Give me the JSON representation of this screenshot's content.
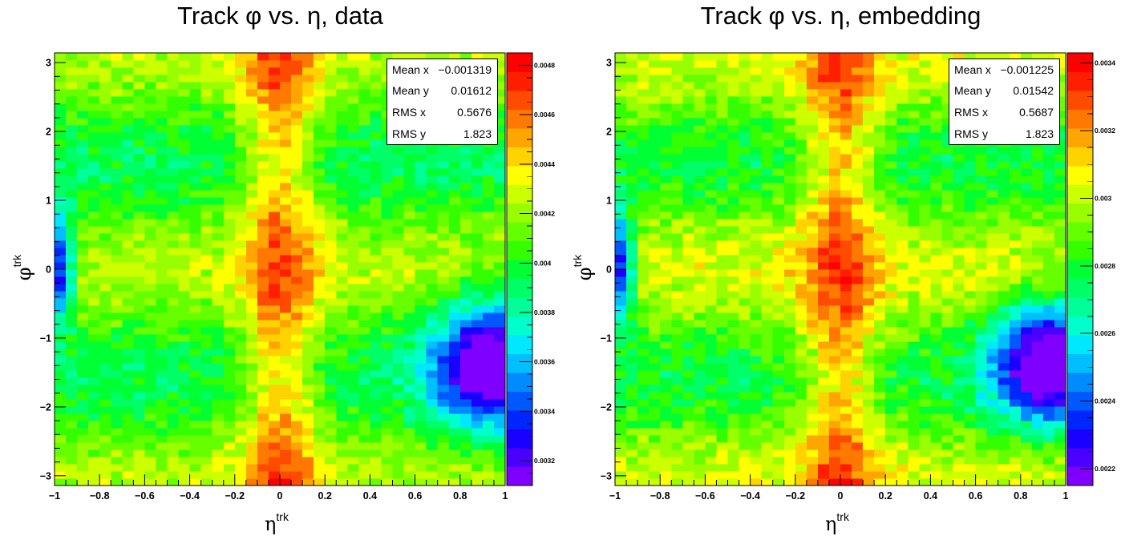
{
  "chart_data": [
    {
      "type": "heatmap",
      "title": "Track φ vs. η, data",
      "xlabel": "η",
      "xlabel_sup": "trk",
      "ylabel": "φ",
      "ylabel_sup": "trk",
      "xlim": [
        -1,
        1
      ],
      "ylim": [
        -3.1416,
        3.1416
      ],
      "x_ticks": [
        "−1",
        "−0.8",
        "−0.6",
        "−0.4",
        "−0.2",
        "0",
        "0.2",
        "0.4",
        "0.6",
        "0.8",
        "1"
      ],
      "y_ticks": [
        "−3",
        "−2",
        "−1",
        "0",
        "1",
        "2",
        "3"
      ],
      "zlim": [
        0.0031,
        0.00485
      ],
      "z_ticks": [
        "0.0032",
        "0.0034",
        "0.0036",
        "0.0038",
        "0.004",
        "0.0042",
        "0.0044",
        "0.0046",
        "0.0048"
      ],
      "z_tick_values": [
        0.0032,
        0.0034,
        0.0036,
        0.0038,
        0.004,
        0.0042,
        0.0044,
        0.0046,
        0.0048
      ],
      "bins": [
        40,
        60
      ],
      "pattern": {
        "base": 0.00408,
        "center_peak": 0.00046,
        "center_width": 0.12,
        "phi_modulation": 0.00016,
        "blue_spot_left": {
          "eta": -0.98,
          "phi": 0.05,
          "depth": 0.0009
        },
        "cold_region_right": {
          "eta": 0.93,
          "phi": -1.35,
          "depth": 0.00105
        },
        "noise": 0.0001
      },
      "stats": [
        {
          "label": "Mean x",
          "value": "−0.001319"
        },
        {
          "label": "Mean y",
          "value": "0.01612"
        },
        {
          "label": "RMS x",
          "value": "0.5676"
        },
        {
          "label": "RMS y",
          "value": "1.823"
        }
      ]
    },
    {
      "type": "heatmap",
      "title": "Track φ vs. η, embedding",
      "xlabel": "η",
      "xlabel_sup": "trk",
      "ylabel": "φ",
      "ylabel_sup": "trk",
      "xlim": [
        -1,
        1
      ],
      "ylim": [
        -3.1416,
        3.1416
      ],
      "x_ticks": [
        "−1",
        "−0.8",
        "−0.6",
        "−0.4",
        "−0.2",
        "0",
        "0.2",
        "0.4",
        "0.6",
        "0.8",
        "1"
      ],
      "y_ticks": [
        "−3",
        "−2",
        "−1",
        "0",
        "1",
        "2",
        "3"
      ],
      "zlim": [
        0.00215,
        0.00343
      ],
      "z_ticks": [
        "0.0022",
        "0.0024",
        "0.0026",
        "0.0028",
        "0.003",
        "0.0032",
        "0.0034"
      ],
      "z_tick_values": [
        0.0022,
        0.0024,
        0.0026,
        0.0028,
        0.003,
        0.0032,
        0.0034
      ],
      "bins": [
        40,
        60
      ],
      "pattern": {
        "base": 0.0029,
        "center_peak": 0.00032,
        "center_width": 0.12,
        "phi_modulation": 0.00012,
        "blue_spot_left": {
          "eta": -0.98,
          "phi": 0.05,
          "depth": 0.0007
        },
        "cold_region_right": {
          "eta": 0.93,
          "phi": -1.35,
          "depth": 0.0008
        },
        "noise": 8e-05
      },
      "stats": [
        {
          "label": "Mean x",
          "value": "−0.001225"
        },
        {
          "label": "Mean y",
          "value": "0.01542"
        },
        {
          "label": "RMS x",
          "value": "0.5687"
        },
        {
          "label": "RMS y",
          "value": "1.823"
        }
      ]
    }
  ],
  "palette": [
    "#7f00ff",
    "#4b00ff",
    "#1a00ff",
    "#0026ff",
    "#0059ff",
    "#008bff",
    "#00bfff",
    "#00e8ff",
    "#00ffcc",
    "#00ff99",
    "#00ff66",
    "#00ff33",
    "#33ff00",
    "#66ff00",
    "#99ff00",
    "#ccff00",
    "#ffff00",
    "#ffd200",
    "#ffa500",
    "#ff7800",
    "#ff4b00",
    "#ff1e00",
    "#ff0000"
  ]
}
